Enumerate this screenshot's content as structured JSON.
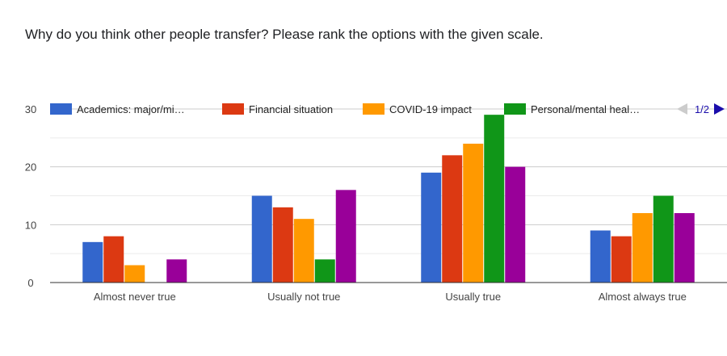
{
  "question": "Why do you think other people transfer? Please rank the options with the given scale.",
  "legend": {
    "page_indicator": "1/2",
    "prev_icon": "triangle-left-icon",
    "next_icon": "triangle-right-icon"
  },
  "chart_data": {
    "type": "bar",
    "categories": [
      "Almost never true",
      "Usually not true",
      "Usually true",
      "Almost always true"
    ],
    "series": [
      {
        "name": "Academics: major/mi…",
        "color": "#3366cc",
        "values": [
          7,
          15,
          19,
          9
        ]
      },
      {
        "name": "Financial situation",
        "color": "#dc3912",
        "values": [
          8,
          13,
          22,
          8
        ]
      },
      {
        "name": "COVID-19 impact",
        "color": "#ff9900",
        "values": [
          3,
          11,
          24,
          12
        ]
      },
      {
        "name": "Personal/mental heal…",
        "color": "#109618",
        "values": [
          0,
          4,
          29,
          15
        ]
      },
      {
        "color": "#990099",
        "values": [
          4,
          16,
          20,
          12
        ]
      }
    ],
    "yticks": [
      0,
      10,
      20,
      30
    ],
    "ylim": [
      0,
      30
    ],
    "grid": true,
    "legend_position": "top"
  }
}
